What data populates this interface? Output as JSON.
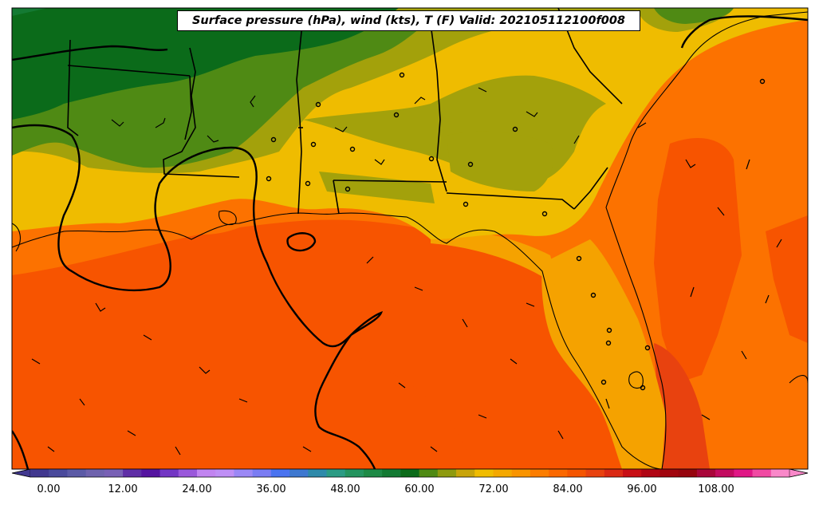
{
  "title": "Surface pressure (hPa), wind (kts), T (F) Valid: 202105112100f008",
  "colorbar": {
    "ticks": [
      "0.00",
      "12.00",
      "24.00",
      "36.00",
      "48.00",
      "60.00",
      "72.00",
      "84.00",
      "96.00",
      "108.00"
    ],
    "colors": [
      "#41388f",
      "#4a4a9c",
      "#5b5aa6",
      "#6e62ad",
      "#7860b5",
      "#5f2ea6",
      "#5514a0",
      "#7336c4",
      "#9a58db",
      "#c184f0",
      "#bf8ff5",
      "#9b88f5",
      "#7a7cf3",
      "#4a73f0",
      "#3e78d0",
      "#2e8aaa",
      "#2b9b84",
      "#24945f",
      "#1e8a46",
      "#137a33",
      "#0b6b1a",
      "#4f8a14",
      "#8e9a0f",
      "#c8a40a",
      "#f0bc00",
      "#f4a800",
      "#f99400",
      "#fc7d00",
      "#fb6800",
      "#f55500",
      "#e8420f",
      "#da2914",
      "#c80e15",
      "#b00514",
      "#a1050e",
      "#96050e",
      "#a9063a",
      "#c30b60",
      "#e01786",
      "#f14aa3",
      "#f988c9"
    ],
    "units": "T (F)"
  },
  "colors": {
    "dark_green": "#0b6b1a",
    "green": "#4f8a14",
    "olive": "#a3a10b",
    "yellow": "#efbc00",
    "amber": "#f5a200",
    "orange": "#fc7200",
    "red_orange": "#f75400",
    "deep_orange": "#e8420f",
    "outline": "#000000"
  },
  "map_features": [
    "state borders",
    "coastlines",
    "isobars",
    "wind barbs",
    "station circles"
  ]
}
